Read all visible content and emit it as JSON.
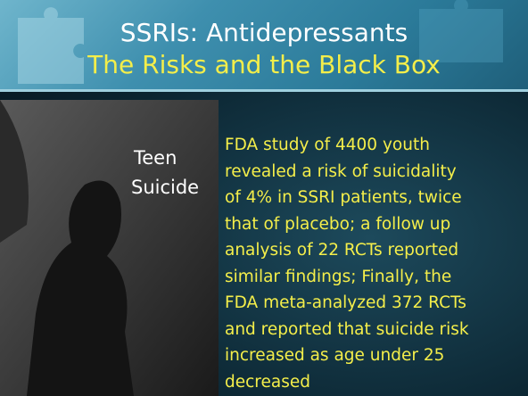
{
  "slide": {
    "title": "SSRIs: Antidepressants",
    "subtitle": "The Risks and the Black Box",
    "image": {
      "caption_lines": [
        "Teen",
        "Suicide"
      ]
    },
    "bullet_lines": [
      "FDA study of 4400 youth",
      "revealed a risk of suicidality",
      "of 4% in SSRI patients, twice",
      "that of placebo; a follow up",
      "analysis of 22 RCTs reported",
      "similar findings; Finally, the",
      "FDA meta-analyzed 372 RCTs",
      "and reported that suicide risk",
      "increased as age under 25",
      "decreased"
    ]
  }
}
